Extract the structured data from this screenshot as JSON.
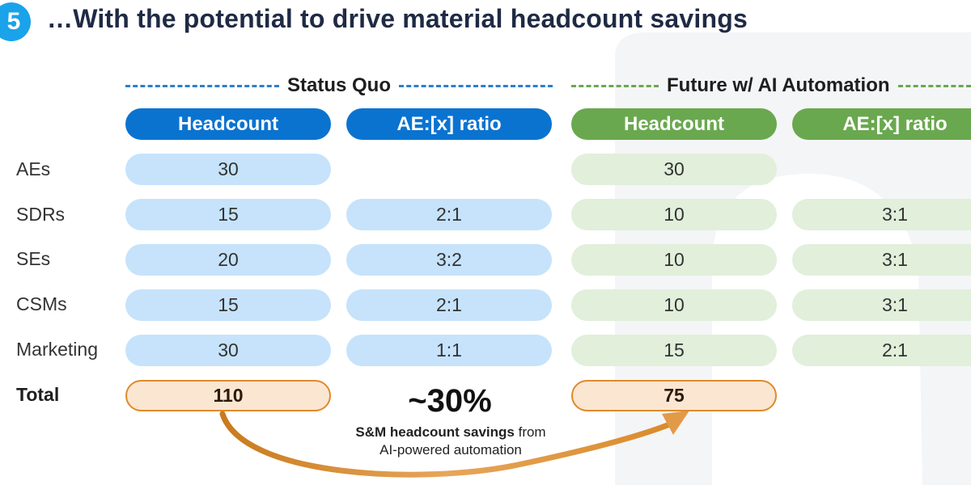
{
  "slide": {
    "step_number": "5",
    "title": "…With the potential to drive material headcount savings"
  },
  "sections": {
    "status_quo": {
      "label": "Status Quo",
      "color": "#0a73d0"
    },
    "future": {
      "label": "Future w/ AI Automation",
      "color": "#6aa84f"
    }
  },
  "columns": {
    "sq_headcount": "Headcount",
    "sq_ratio": "AE:[x] ratio",
    "fut_headcount": "Headcount",
    "fut_ratio": "AE:[x] ratio"
  },
  "rows": [
    {
      "label": "AEs",
      "sq_headcount": "30",
      "sq_ratio": "",
      "fut_headcount": "30",
      "fut_ratio": ""
    },
    {
      "label": "SDRs",
      "sq_headcount": "15",
      "sq_ratio": "2:1",
      "fut_headcount": "10",
      "fut_ratio": "3:1"
    },
    {
      "label": "SEs",
      "sq_headcount": "20",
      "sq_ratio": "3:2",
      "fut_headcount": "10",
      "fut_ratio": "3:1"
    },
    {
      "label": "CSMs",
      "sq_headcount": "15",
      "sq_ratio": "2:1",
      "fut_headcount": "10",
      "fut_ratio": "3:1"
    },
    {
      "label": "Marketing",
      "sq_headcount": "30",
      "sq_ratio": "1:1",
      "fut_headcount": "15",
      "fut_ratio": "2:1"
    }
  ],
  "total": {
    "label": "Total",
    "sq_headcount": "110",
    "fut_headcount": "75"
  },
  "savings": {
    "percent": "~30%",
    "desc_bold": "S&M headcount savings",
    "desc_rest": " from",
    "desc_line2": "AI-powered automation"
  },
  "colors": {
    "badge": "#1aa3ea",
    "blue_header": "#0a73d0",
    "blue_cell": "#c6e3fb",
    "green_header": "#6aa84f",
    "green_cell": "#e1efdb",
    "total_fill": "#fbe6d2",
    "total_border": "#e08a2a",
    "arrow": "#d98a2b"
  }
}
